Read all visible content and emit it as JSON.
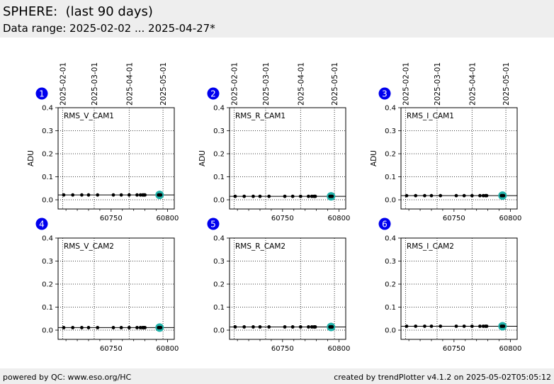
{
  "header": {
    "title": "SPHERE:  (last 90 days)",
    "subtitle": "Data range: 2025-02-02 ... 2025-04-27*"
  },
  "footer": {
    "left": "powered by QC: www.eso.org/HC",
    "right": "created by trendPlotter v4.1.2 on 2025-05-02T05:05:12"
  },
  "colors": {
    "point": "#000000",
    "highlight": "#20b2aa",
    "badge": "#0000ee",
    "badge_text": "#ffffff"
  },
  "chart_data": [
    {
      "type": "scatter",
      "panel": "1",
      "label": "RMS_V_CAM1",
      "ylabel": "ADU",
      "ylim": [
        -0.04,
        0.4
      ],
      "yticks": [
        "0.0",
        "0.1",
        "0.2",
        "0.3",
        "0.4"
      ],
      "xlim": [
        60703,
        60806
      ],
      "xticks": [
        "60750",
        "60800"
      ],
      "date_ticks": [
        {
          "label": "2025-02-01",
          "mjd": 60707
        },
        {
          "label": "2025-03-01",
          "mjd": 60735
        },
        {
          "label": "2025-04-01",
          "mjd": 60766
        },
        {
          "label": "2025-05-01",
          "mjd": 60796
        }
      ],
      "reference": 0.021,
      "x": [
        60708,
        60716,
        60724,
        60730,
        60738,
        60752,
        60759,
        60766,
        60773,
        60776,
        60778,
        60779,
        60780,
        60792,
        60793,
        60794
      ],
      "y": [
        0.021,
        0.021,
        0.021,
        0.021,
        0.021,
        0.021,
        0.021,
        0.021,
        0.021,
        0.021,
        0.021,
        0.021,
        0.021,
        0.021,
        0.021,
        0.021
      ],
      "highlight_x": 60793,
      "highlight_y": 0.021
    },
    {
      "type": "scatter",
      "panel": "2",
      "label": "RMS_R_CAM1",
      "ylabel": "ADU",
      "ylim": [
        -0.04,
        0.4
      ],
      "yticks": [
        "0.0",
        "0.1",
        "0.2",
        "0.3",
        "0.4"
      ],
      "xlim": [
        60703,
        60806
      ],
      "xticks": [
        "60750",
        "60800"
      ],
      "date_ticks": [
        {
          "label": "2025-02-01",
          "mjd": 60707
        },
        {
          "label": "2025-03-01",
          "mjd": 60735
        },
        {
          "label": "2025-04-01",
          "mjd": 60766
        },
        {
          "label": "2025-05-01",
          "mjd": 60796
        }
      ],
      "reference": 0.015,
      "x": [
        60708,
        60716,
        60724,
        60730,
        60738,
        60752,
        60759,
        60766,
        60773,
        60776,
        60778,
        60779,
        60792,
        60793,
        60794
      ],
      "y": [
        0.015,
        0.015,
        0.015,
        0.015,
        0.015,
        0.015,
        0.015,
        0.015,
        0.015,
        0.015,
        0.015,
        0.015,
        0.015,
        0.015,
        0.015
      ],
      "highlight_x": 60793,
      "highlight_y": 0.015
    },
    {
      "type": "scatter",
      "panel": "3",
      "label": "RMS_I_CAM1",
      "ylabel": "ADU",
      "ylim": [
        -0.04,
        0.4
      ],
      "yticks": [
        "0.0",
        "0.1",
        "0.2",
        "0.3",
        "0.4"
      ],
      "xlim": [
        60703,
        60806
      ],
      "xticks": [
        "60750",
        "60800"
      ],
      "date_ticks": [
        {
          "label": "2025-02-01",
          "mjd": 60707
        },
        {
          "label": "2025-03-01",
          "mjd": 60735
        },
        {
          "label": "2025-04-01",
          "mjd": 60766
        },
        {
          "label": "2025-05-01",
          "mjd": 60796
        }
      ],
      "reference": 0.018,
      "x": [
        60708,
        60716,
        60724,
        60730,
        60738,
        60752,
        60759,
        60766,
        60773,
        60776,
        60778,
        60779,
        60792,
        60793,
        60794
      ],
      "y": [
        0.018,
        0.018,
        0.018,
        0.018,
        0.018,
        0.018,
        0.018,
        0.018,
        0.018,
        0.018,
        0.018,
        0.018,
        0.018,
        0.018,
        0.018
      ],
      "highlight_x": 60793,
      "highlight_y": 0.018
    },
    {
      "type": "scatter",
      "panel": "4",
      "label": "RMS_V_CAM2",
      "ylabel": "",
      "ylim": [
        -0.04,
        0.4
      ],
      "yticks": [
        "0.0",
        "0.1",
        "0.2",
        "0.3",
        "0.4"
      ],
      "xlim": [
        60703,
        60806
      ],
      "xticks": [
        "60750",
        "60800"
      ],
      "date_ticks": [
        {
          "label": "",
          "mjd": 60707
        },
        {
          "label": "",
          "mjd": 60735
        },
        {
          "label": "",
          "mjd": 60766
        },
        {
          "label": "",
          "mjd": 60796
        }
      ],
      "reference": 0.011,
      "x": [
        60708,
        60716,
        60724,
        60730,
        60738,
        60752,
        60759,
        60766,
        60773,
        60776,
        60778,
        60779,
        60780,
        60792,
        60793,
        60794
      ],
      "y": [
        0.011,
        0.011,
        0.011,
        0.011,
        0.011,
        0.011,
        0.011,
        0.011,
        0.011,
        0.011,
        0.011,
        0.011,
        0.011,
        0.011,
        0.011,
        0.011
      ],
      "highlight_x": 60793,
      "highlight_y": 0.011
    },
    {
      "type": "scatter",
      "panel": "5",
      "label": "RMS_R_CAM2",
      "ylabel": "",
      "ylim": [
        -0.04,
        0.4
      ],
      "yticks": [
        "0.0",
        "0.1",
        "0.2",
        "0.3",
        "0.4"
      ],
      "xlim": [
        60703,
        60806
      ],
      "xticks": [
        "60750",
        "60800"
      ],
      "date_ticks": [
        {
          "label": "",
          "mjd": 60707
        },
        {
          "label": "",
          "mjd": 60735
        },
        {
          "label": "",
          "mjd": 60766
        },
        {
          "label": "",
          "mjd": 60796
        }
      ],
      "reference": 0.014,
      "x": [
        60708,
        60716,
        60724,
        60730,
        60738,
        60752,
        60759,
        60766,
        60773,
        60776,
        60778,
        60779,
        60792,
        60793,
        60794
      ],
      "y": [
        0.014,
        0.014,
        0.014,
        0.014,
        0.014,
        0.014,
        0.014,
        0.014,
        0.014,
        0.014,
        0.014,
        0.014,
        0.014,
        0.014,
        0.014
      ],
      "highlight_x": 60793,
      "highlight_y": 0.014
    },
    {
      "type": "scatter",
      "panel": "6",
      "label": "RMS_I_CAM2",
      "ylabel": "",
      "ylim": [
        -0.04,
        0.4
      ],
      "yticks": [
        "0.0",
        "0.1",
        "0.2",
        "0.3",
        "0.4"
      ],
      "xlim": [
        60703,
        60806
      ],
      "xticks": [
        "60750",
        "60800"
      ],
      "date_ticks": [
        {
          "label": "",
          "mjd": 60707
        },
        {
          "label": "",
          "mjd": 60735
        },
        {
          "label": "",
          "mjd": 60766
        },
        {
          "label": "",
          "mjd": 60796
        }
      ],
      "reference": 0.017,
      "x": [
        60708,
        60716,
        60724,
        60730,
        60738,
        60752,
        60759,
        60766,
        60773,
        60776,
        60778,
        60779,
        60792,
        60793,
        60794
      ],
      "y": [
        0.017,
        0.017,
        0.017,
        0.017,
        0.017,
        0.017,
        0.017,
        0.017,
        0.017,
        0.017,
        0.017,
        0.017,
        0.017,
        0.017,
        0.017
      ],
      "highlight_x": 60793,
      "highlight_y": 0.017
    }
  ]
}
